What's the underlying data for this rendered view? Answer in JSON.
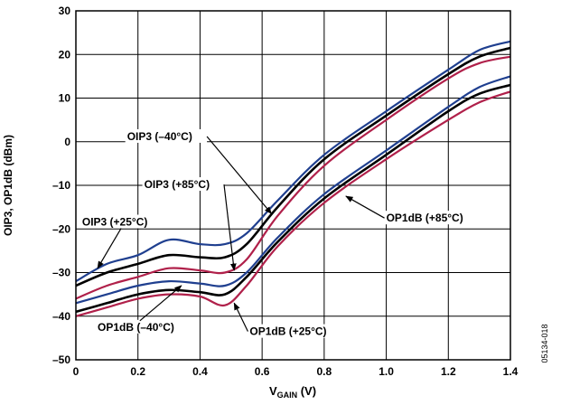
{
  "chart_data": {
    "type": "line",
    "title": "",
    "xlabel_main": "V",
    "xlabel_sub": "GAIN",
    "xlabel_unit": " (V)",
    "ylabel": "OIP3, OP1dB (dBm)",
    "xlim": [
      0,
      1.4
    ],
    "ylim": [
      -50,
      30
    ],
    "x_ticks": [
      "0",
      "0.2",
      "0.4",
      "0.6",
      "0.8",
      "1.0",
      "1.2",
      "1.4"
    ],
    "y_ticks": [
      "30",
      "20",
      "10",
      "0",
      "–10",
      "–20",
      "–30",
      "–40",
      "–50"
    ],
    "grid": true,
    "side_code": "05134-018",
    "colors": {
      "cold": "#1f3f8f",
      "room": "#000000",
      "hot": "#b0204a"
    },
    "series": [
      {
        "name": "OIP3 (–40°C)",
        "color_key": "cold",
        "points": [
          [
            0,
            -32
          ],
          [
            0.1,
            -28
          ],
          [
            0.2,
            -26
          ],
          [
            0.3,
            -22.5
          ],
          [
            0.4,
            -23.5
          ],
          [
            0.48,
            -23.5
          ],
          [
            0.55,
            -21
          ],
          [
            0.65,
            -13.5
          ],
          [
            0.8,
            -3
          ],
          [
            1.0,
            7
          ],
          [
            1.2,
            16.5
          ],
          [
            1.3,
            21
          ],
          [
            1.4,
            23
          ]
        ]
      },
      {
        "name": "OIP3 (+25°C)",
        "color_key": "room",
        "points": [
          [
            0,
            -33
          ],
          [
            0.1,
            -30
          ],
          [
            0.2,
            -28
          ],
          [
            0.3,
            -26
          ],
          [
            0.4,
            -26.5
          ],
          [
            0.48,
            -26.5
          ],
          [
            0.55,
            -23.5
          ],
          [
            0.65,
            -15
          ],
          [
            0.8,
            -4
          ],
          [
            1.0,
            6
          ],
          [
            1.2,
            15.5
          ],
          [
            1.3,
            19.5
          ],
          [
            1.4,
            21.5
          ]
        ]
      },
      {
        "name": "OIP3 (+85°C)",
        "color_key": "hot",
        "points": [
          [
            0,
            -36
          ],
          [
            0.1,
            -33
          ],
          [
            0.2,
            -31
          ],
          [
            0.3,
            -29
          ],
          [
            0.4,
            -29.5
          ],
          [
            0.48,
            -30
          ],
          [
            0.55,
            -27
          ],
          [
            0.65,
            -17
          ],
          [
            0.8,
            -5.5
          ],
          [
            1.0,
            5
          ],
          [
            1.2,
            14.5
          ],
          [
            1.3,
            18
          ],
          [
            1.4,
            19.5
          ]
        ]
      },
      {
        "name": "OP1dB (–40°C)",
        "color_key": "cold",
        "points": [
          [
            0,
            -37
          ],
          [
            0.1,
            -35
          ],
          [
            0.2,
            -33
          ],
          [
            0.3,
            -32
          ],
          [
            0.4,
            -32.5
          ],
          [
            0.48,
            -33
          ],
          [
            0.55,
            -30
          ],
          [
            0.65,
            -22
          ],
          [
            0.8,
            -12
          ],
          [
            1.0,
            -2
          ],
          [
            1.2,
            8
          ],
          [
            1.3,
            12.5
          ],
          [
            1.4,
            15
          ]
        ]
      },
      {
        "name": "OP1dB (+25°C)",
        "color_key": "room",
        "points": [
          [
            0,
            -39
          ],
          [
            0.1,
            -37
          ],
          [
            0.2,
            -35
          ],
          [
            0.3,
            -34
          ],
          [
            0.4,
            -34.5
          ],
          [
            0.48,
            -35
          ],
          [
            0.55,
            -31
          ],
          [
            0.65,
            -23
          ],
          [
            0.8,
            -13
          ],
          [
            1.0,
            -3
          ],
          [
            1.2,
            7
          ],
          [
            1.3,
            11
          ],
          [
            1.4,
            13
          ]
        ]
      },
      {
        "name": "OP1dB (+85°C)",
        "color_key": "hot",
        "points": [
          [
            0,
            -40
          ],
          [
            0.1,
            -38
          ],
          [
            0.2,
            -36
          ],
          [
            0.3,
            -35
          ],
          [
            0.4,
            -35.5
          ],
          [
            0.48,
            -37.5
          ],
          [
            0.55,
            -33
          ],
          [
            0.65,
            -24
          ],
          [
            0.8,
            -14
          ],
          [
            1.0,
            -4
          ],
          [
            1.2,
            5
          ],
          [
            1.3,
            9
          ],
          [
            1.4,
            11.5
          ]
        ]
      }
    ],
    "annotations": [
      {
        "text": "OIP3 (–40°C)",
        "at": [
          0.63,
          -16.5
        ],
        "label_anchor": [
          0.165,
          1.2
        ]
      },
      {
        "text": "OIP3 (+85°C)",
        "at": [
          0.51,
          -29.5
        ],
        "label_anchor": [
          0.22,
          -9.8
        ]
      },
      {
        "text": "OIP3 (+25°C)",
        "at": [
          0.07,
          -29.0
        ],
        "label_anchor": [
          0.02,
          -18.4
        ]
      },
      {
        "text": "OP1dB (+85°C)",
        "at": [
          0.87,
          -12.5
        ],
        "label_anchor": [
          1.0,
          -17.5
        ]
      },
      {
        "text": "OP1dB (–40°C)",
        "at": [
          0.34,
          -33.0
        ],
        "label_anchor": [
          0.07,
          -42.5
        ]
      },
      {
        "text": "OP1dB (+25°C)",
        "at": [
          0.51,
          -37.0
        ],
        "label_anchor": [
          0.56,
          -43.5
        ]
      }
    ]
  }
}
